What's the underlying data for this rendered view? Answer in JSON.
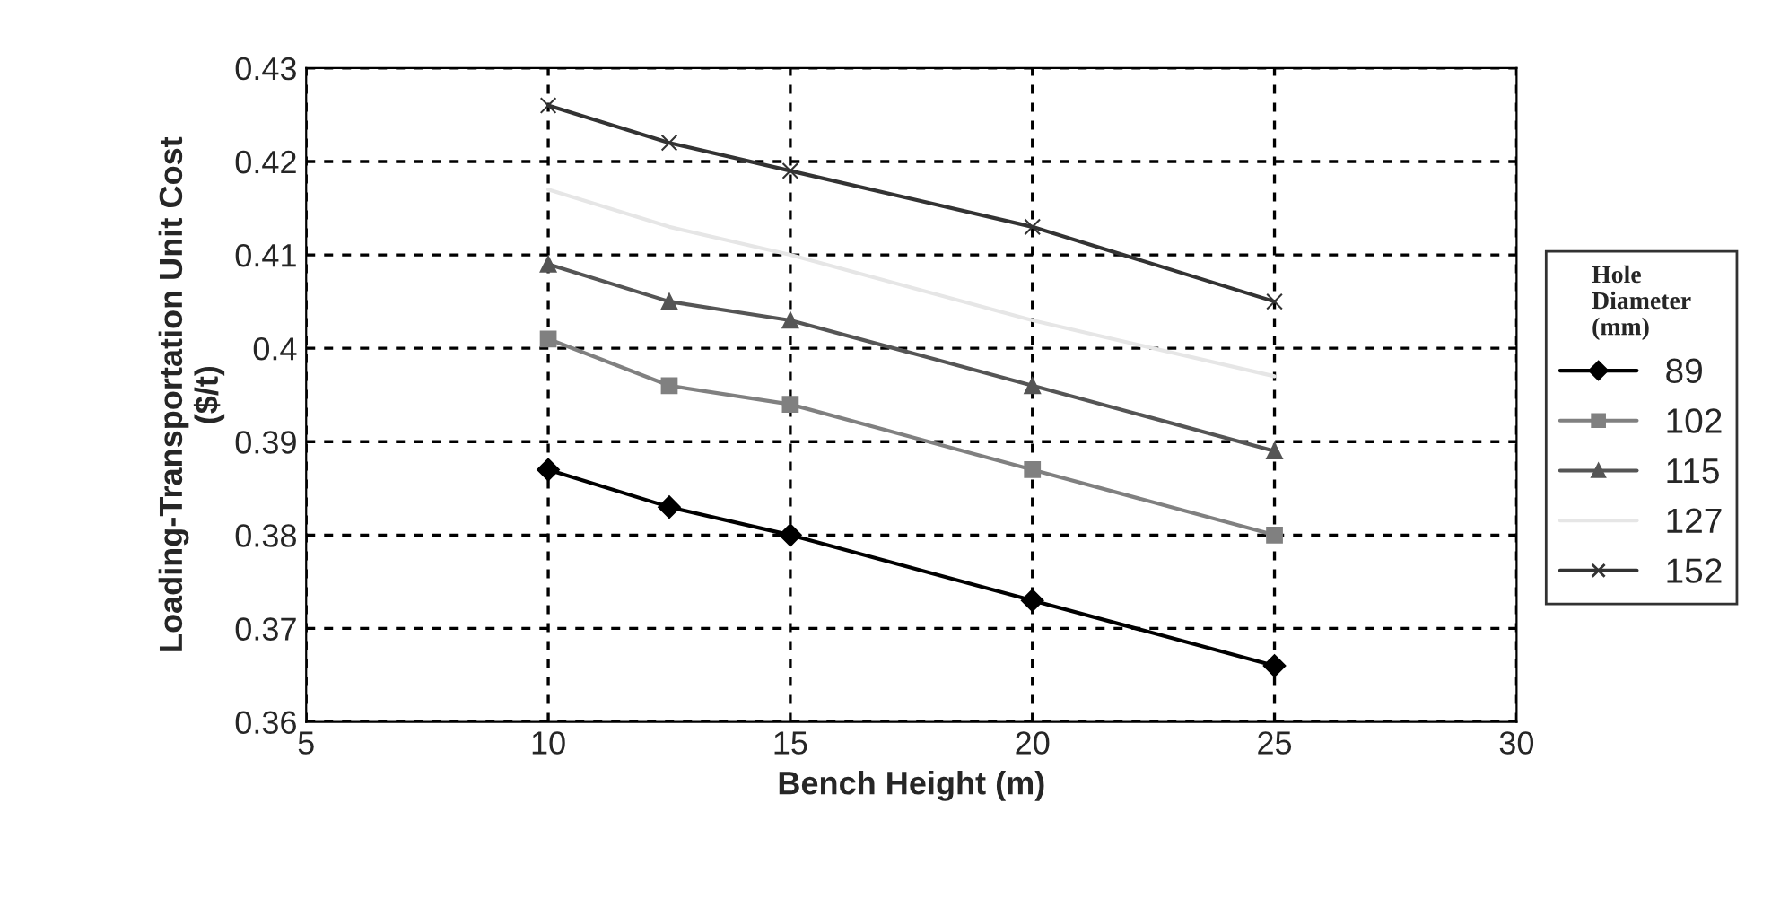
{
  "chart_data": {
    "type": "line",
    "xlabel": "Bench Height (m)",
    "ylabel": "Loading-Transportation Unit Cost\n($/t)",
    "legend_title": "Hole\nDiameter\n(mm)",
    "x": [
      10,
      12.5,
      15,
      20,
      25
    ],
    "series": [
      {
        "name": "89",
        "color": "#000000",
        "marker": "diamond",
        "values": [
          0.387,
          0.383,
          0.38,
          0.373,
          0.366
        ]
      },
      {
        "name": "102",
        "color": "#808080",
        "marker": "square",
        "values": [
          0.401,
          0.396,
          0.394,
          0.387,
          0.38
        ]
      },
      {
        "name": "115",
        "color": "#555555",
        "marker": "triangle",
        "values": [
          0.409,
          0.405,
          0.403,
          0.396,
          0.389
        ]
      },
      {
        "name": "127",
        "color": "#e6e6e6",
        "marker": "none",
        "values": [
          0.417,
          0.413,
          0.41,
          0.403,
          0.397
        ]
      },
      {
        "name": "152",
        "color": "#333333",
        "marker": "cross",
        "values": [
          0.426,
          0.422,
          0.419,
          0.413,
          0.405
        ]
      }
    ],
    "xlim": [
      5,
      30
    ],
    "xticks": [
      5,
      10,
      15,
      20,
      25,
      30
    ],
    "ylim": [
      0.36,
      0.43
    ],
    "yticks": [
      0.36,
      0.37,
      0.38,
      0.39,
      0.4,
      0.41,
      0.42,
      0.43
    ],
    "grid": true,
    "legend": "right",
    "line_style": "solid"
  }
}
